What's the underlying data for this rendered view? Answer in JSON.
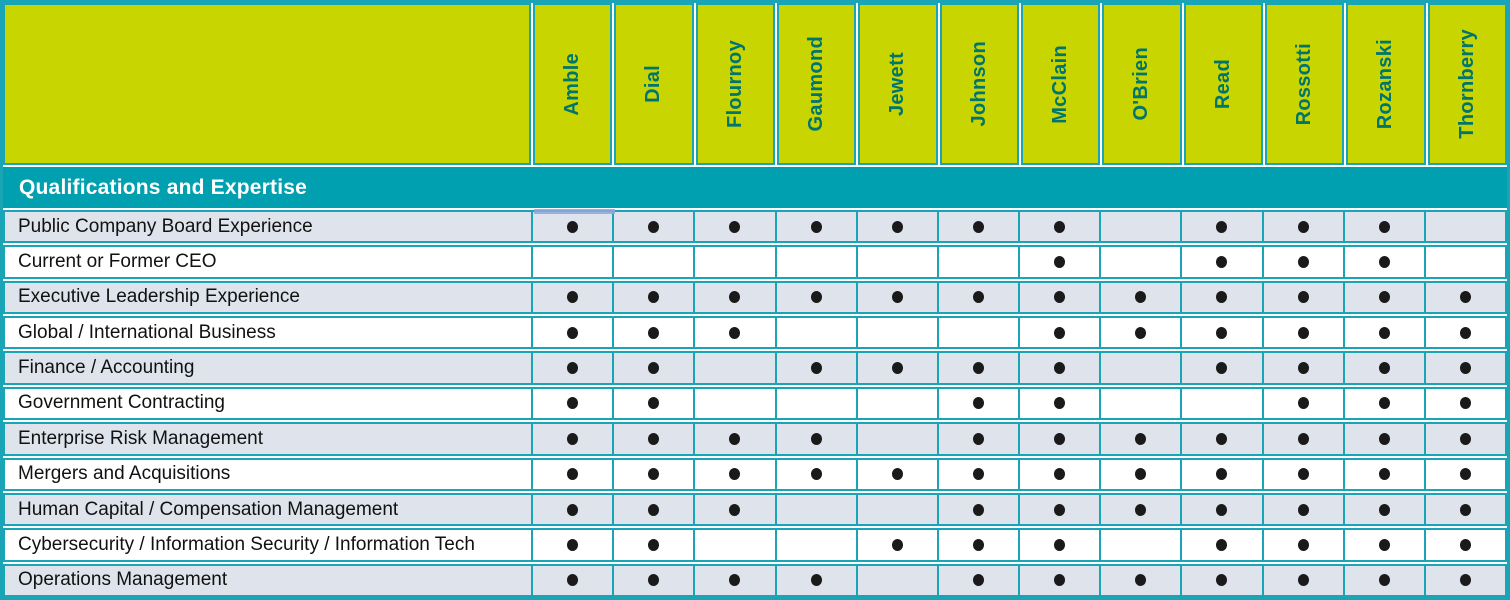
{
  "table": {
    "section_header": "Qualifications and Expertise",
    "columns": [
      "Amble",
      "Dial",
      "Flournoy",
      "Gaumond",
      "Jewett",
      "Johnson",
      "McClain",
      "O'Brien",
      "Read",
      "Rossotti",
      "Rozanski",
      "Thornberry"
    ],
    "rows": [
      {
        "label": "Public Company Board Experience",
        "dots": [
          1,
          1,
          1,
          1,
          1,
          1,
          1,
          0,
          1,
          1,
          1,
          0
        ]
      },
      {
        "label": "Current or Former CEO",
        "dots": [
          0,
          0,
          0,
          0,
          0,
          0,
          1,
          0,
          1,
          1,
          1,
          0
        ]
      },
      {
        "label": "Executive Leadership Experience",
        "dots": [
          1,
          1,
          1,
          1,
          1,
          1,
          1,
          1,
          1,
          1,
          1,
          1
        ]
      },
      {
        "label": "Global / International Business",
        "dots": [
          1,
          1,
          1,
          0,
          0,
          0,
          1,
          1,
          1,
          1,
          1,
          1
        ]
      },
      {
        "label": "Finance / Accounting",
        "dots": [
          1,
          1,
          0,
          1,
          1,
          1,
          1,
          0,
          1,
          1,
          1,
          1
        ]
      },
      {
        "label": "Government Contracting",
        "dots": [
          1,
          1,
          0,
          0,
          0,
          1,
          1,
          0,
          0,
          1,
          1,
          1
        ]
      },
      {
        "label": "Enterprise Risk Management",
        "dots": [
          1,
          1,
          1,
          1,
          0,
          1,
          1,
          1,
          1,
          1,
          1,
          1
        ]
      },
      {
        "label": "Mergers and Acquisitions",
        "dots": [
          1,
          1,
          1,
          1,
          1,
          1,
          1,
          1,
          1,
          1,
          1,
          1
        ]
      },
      {
        "label": "Human Capital / Compensation Management",
        "dots": [
          1,
          1,
          1,
          0,
          0,
          1,
          1,
          1,
          1,
          1,
          1,
          1
        ]
      },
      {
        "label": "Cybersecurity / Information Security / Information Tech",
        "dots": [
          1,
          1,
          0,
          0,
          1,
          1,
          1,
          0,
          1,
          1,
          1,
          1
        ]
      },
      {
        "label": "Operations Management",
        "dots": [
          1,
          1,
          1,
          1,
          0,
          1,
          1,
          1,
          1,
          1,
          1,
          1
        ]
      }
    ],
    "dot_symbol": "●"
  },
  "colors": {
    "header_background": "#c9d500",
    "band_background": "#00a0b0",
    "grid_lines": "#1aa5b6",
    "column_name_text": "#00756e",
    "band_text": "#ffffff",
    "alt_row_background": "#dee3ec",
    "dot": "#1a1a1a"
  }
}
